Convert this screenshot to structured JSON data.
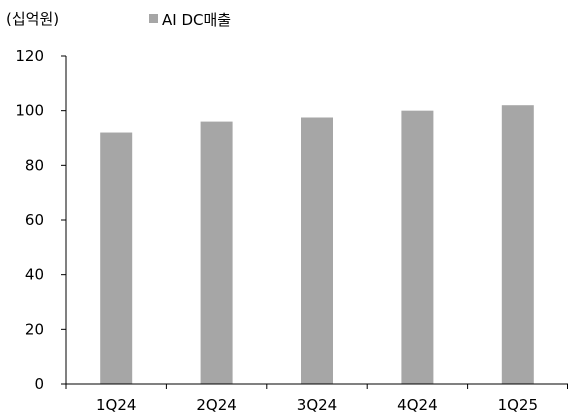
{
  "chart_data": {
    "type": "bar",
    "unit_label": "(십억원)",
    "categories": [
      "1Q24",
      "2Q24",
      "3Q24",
      "4Q24",
      "1Q25"
    ],
    "series": [
      {
        "name": "AI DC매출",
        "color": "#a6a6a6",
        "values": [
          92,
          96,
          97.5,
          100,
          102
        ]
      }
    ],
    "ylim": [
      0,
      120
    ],
    "yticks": [
      0,
      20,
      40,
      60,
      80,
      100,
      120
    ],
    "grid": false,
    "legend_position": "top"
  }
}
